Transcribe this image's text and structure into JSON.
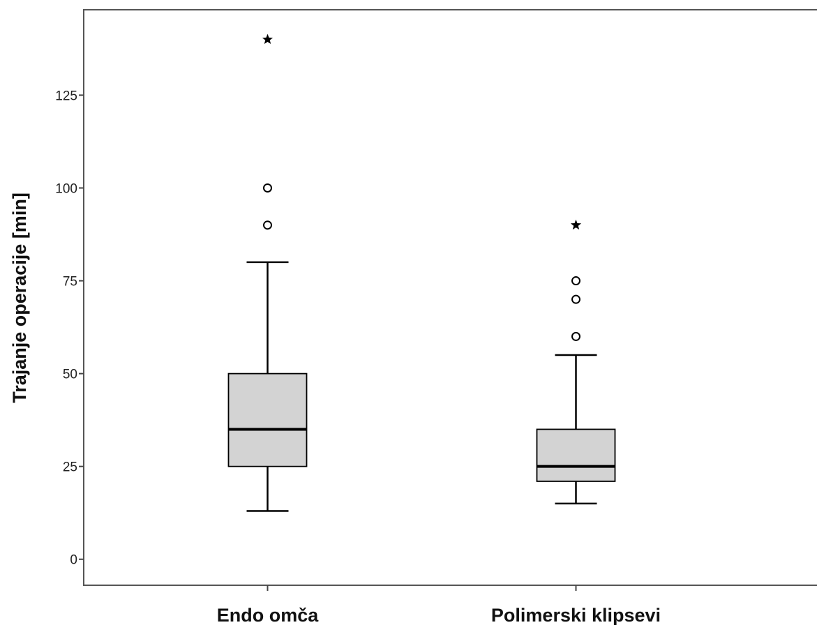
{
  "chart_data": {
    "type": "boxplot",
    "title": "",
    "xlabel": "",
    "ylabel": "Trajanje operacije [min]",
    "ylim": [
      -7,
      148
    ],
    "yticks": [
      0,
      25,
      50,
      75,
      100,
      125
    ],
    "grid": false,
    "legend": "none",
    "categories": [
      "Endo omča",
      "Polimerski klipsevi"
    ],
    "boxes": [
      {
        "whisker_low": 13,
        "q1": 25,
        "median": 35,
        "q3": 50,
        "whisker_high": 80,
        "outliers": [
          100,
          90
        ],
        "extremes": [
          140
        ]
      },
      {
        "whisker_low": 15,
        "q1": 21,
        "median": 25,
        "q3": 35,
        "whisker_high": 55,
        "outliers": [
          75,
          70,
          60
        ],
        "extremes": [
          90
        ]
      }
    ],
    "colors": {
      "box_fill": "#d3d3d3",
      "stroke": "#000000",
      "frame": "#555555"
    }
  }
}
